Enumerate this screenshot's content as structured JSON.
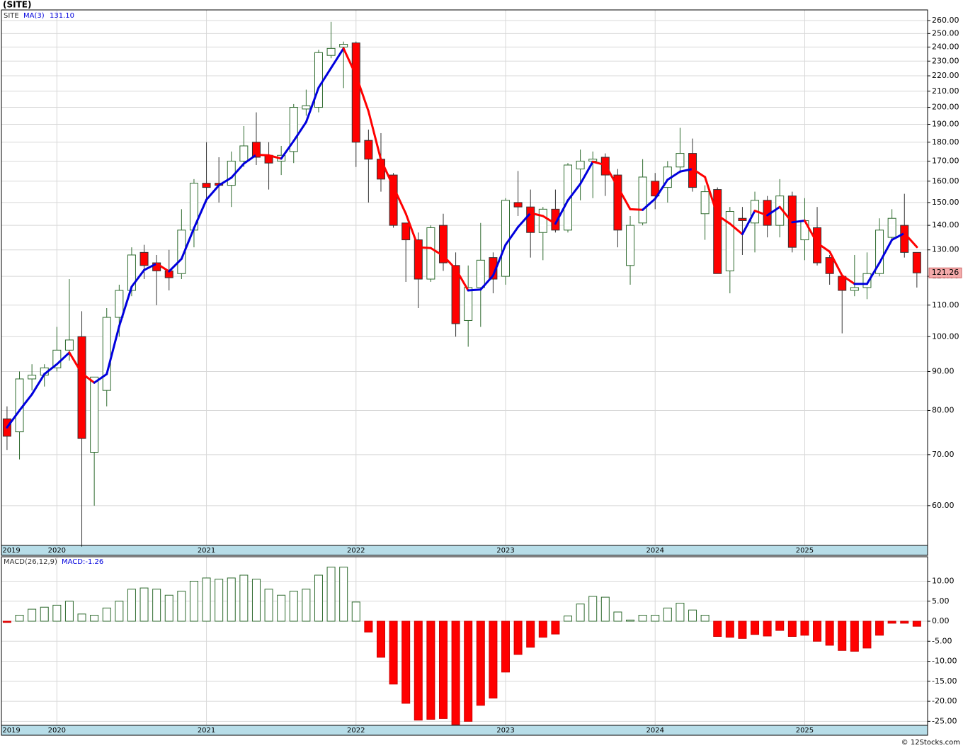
{
  "chart_data": [
    {
      "type": "candlestick",
      "title": "(SITE)",
      "symbol": "SITE",
      "ma_name": "MA(3)",
      "ma_label": "131.10",
      "x": [
        0,
        1,
        2,
        3,
        4,
        5,
        6,
        7,
        8,
        9,
        10,
        11,
        12,
        13,
        14,
        15,
        16,
        17,
        18,
        19,
        20,
        21,
        22,
        23,
        24,
        25,
        26,
        27,
        28,
        29,
        30,
        31,
        32,
        33,
        34,
        35,
        36,
        37,
        38,
        39,
        40,
        41,
        42,
        43,
        44,
        45,
        46,
        47,
        48,
        49,
        50,
        51,
        52,
        53,
        54,
        55,
        56,
        57,
        58,
        59,
        60,
        61,
        62,
        63,
        64,
        65,
        66,
        67,
        68,
        69,
        70,
        71,
        72,
        73
      ],
      "open": [
        78,
        75,
        88,
        89,
        91,
        96,
        100,
        70.5,
        85,
        106,
        115,
        129,
        125,
        122,
        121,
        138,
        159,
        159,
        158,
        170,
        180,
        173,
        170,
        175,
        199,
        200,
        234,
        240,
        243,
        181,
        171,
        163,
        141,
        134,
        119,
        140,
        124,
        105,
        116,
        127,
        120,
        150,
        148,
        137,
        147,
        138,
        166,
        170,
        172,
        163,
        124,
        141,
        160,
        157,
        167,
        174,
        145,
        156,
        122,
        143,
        141,
        151,
        140,
        153,
        134,
        139,
        127,
        120,
        115,
        116,
        121,
        135,
        140,
        129
      ],
      "high": [
        81,
        90,
        92,
        92,
        103,
        119,
        108,
        88,
        109,
        117,
        131,
        132,
        128,
        130,
        147,
        161,
        180,
        172,
        175,
        189,
        197,
        180,
        178,
        202,
        211,
        238,
        259,
        244,
        244,
        187,
        185,
        164,
        141,
        137,
        140,
        145,
        129,
        124,
        141,
        129,
        152,
        165,
        156,
        148,
        156,
        169,
        176,
        175,
        174,
        166,
        144,
        171,
        164,
        170,
        188,
        182,
        158,
        157,
        148,
        148,
        155,
        153,
        161,
        155,
        152,
        148,
        128,
        120,
        128,
        129,
        143,
        147,
        154,
        129
      ],
      "low": [
        71,
        69,
        85,
        86,
        90,
        93,
        53,
        60,
        81,
        100,
        113,
        119,
        110,
        115,
        119,
        131,
        150,
        150,
        148,
        167,
        168,
        156,
        163,
        169,
        195,
        197,
        232,
        212,
        167,
        150,
        155,
        139,
        118,
        109,
        118,
        122,
        100,
        97,
        103,
        114,
        117,
        144,
        127,
        126,
        137,
        137,
        151,
        152,
        153,
        131,
        117,
        140,
        147,
        150,
        164,
        155,
        134,
        121,
        114,
        128,
        129,
        135,
        135,
        129,
        126,
        124,
        117,
        101,
        113,
        112,
        120,
        134,
        127,
        116
      ],
      "close": [
        74,
        88,
        89,
        91,
        96,
        99,
        73.5,
        88.5,
        106,
        115,
        128,
        124,
        122,
        119.5,
        138,
        159,
        157,
        158,
        170,
        178,
        172,
        169,
        173,
        200,
        201,
        236,
        239,
        242,
        180,
        171,
        161,
        140,
        134,
        119,
        139,
        125,
        104,
        116,
        126,
        119,
        151,
        148,
        137,
        147,
        138,
        168,
        170,
        171,
        163,
        138,
        140,
        162,
        153,
        167,
        174,
        157,
        155,
        121,
        146,
        142,
        151,
        140,
        153,
        131,
        142,
        125,
        121,
        115,
        116,
        121,
        138,
        143,
        129,
        121.26
      ],
      "ma": [
        76,
        80,
        84,
        89.3,
        92,
        95.3,
        89.5,
        87,
        89.3,
        103.2,
        116.3,
        122.3,
        124.7,
        121.8,
        126.5,
        138.8,
        151.3,
        158,
        161.7,
        168.7,
        173.3,
        173,
        171.3,
        180.7,
        191.3,
        212.3,
        225.3,
        239,
        220.3,
        197.7,
        170.7,
        157.3,
        145,
        131,
        130.7,
        127.7,
        122.7,
        115,
        115.3,
        120.3,
        132,
        139.3,
        145.3,
        144,
        140.7,
        151,
        158.7,
        169.7,
        168,
        157.3,
        147,
        146.7,
        151.7,
        160.7,
        164.7,
        166,
        162,
        144.3,
        140.7,
        136.3,
        146.3,
        144.3,
        148,
        141.3,
        142,
        132.7,
        129.3,
        120.3,
        117.3,
        117.3,
        125,
        134,
        136.7,
        131.1
      ],
      "up_color": "#2f6b2f",
      "down_color": "#ff0000",
      "ma_up_color": "#0000dd",
      "ma_down_color": "#ff0000",
      "ylim": [
        53.2,
        268.5
      ],
      "log_scale": true,
      "yticks": [
        {
          "value": 60,
          "label": "60.00"
        },
        {
          "value": 70,
          "label": "70.00"
        },
        {
          "value": 80,
          "label": "80.00"
        },
        {
          "value": 90,
          "label": "90.00"
        },
        {
          "value": 100,
          "label": "100.00"
        },
        {
          "value": 110,
          "label": "110.00"
        },
        {
          "value": 120,
          "label": "120.00"
        },
        {
          "value": 130,
          "label": "130.00"
        },
        {
          "value": 140,
          "label": "140.00"
        },
        {
          "value": 150,
          "label": "150.00"
        },
        {
          "value": 160,
          "label": "160.00"
        },
        {
          "value": 170,
          "label": "170.00"
        },
        {
          "value": 180,
          "label": "180.00"
        },
        {
          "value": 190,
          "label": "190.00"
        },
        {
          "value": 200,
          "label": "200.00"
        },
        {
          "value": 210,
          "label": "210.00"
        },
        {
          "value": 220,
          "label": "220.00"
        },
        {
          "value": 230,
          "label": "230.00"
        },
        {
          "value": 240,
          "label": "240.00"
        },
        {
          "value": 250,
          "label": "250.00"
        },
        {
          "value": 260,
          "label": "260.00"
        }
      ],
      "xlim": [
        -0.45,
        73.86
      ],
      "xticks": [
        {
          "value": 0.35,
          "label": "2019"
        },
        {
          "value": 4,
          "label": "2020"
        },
        {
          "value": 16,
          "label": "2021"
        },
        {
          "value": 28,
          "label": "2022"
        },
        {
          "value": 40,
          "label": "2023"
        },
        {
          "value": 52,
          "label": "2024"
        },
        {
          "value": 64,
          "label": "2025"
        }
      ],
      "grid": true
    },
    {
      "type": "bar",
      "title": "MACD(26,12,9)",
      "value_label": "MACD:-1.26",
      "x": [
        0,
        1,
        2,
        3,
        4,
        5,
        6,
        7,
        8,
        9,
        10,
        11,
        12,
        13,
        14,
        15,
        16,
        17,
        18,
        19,
        20,
        21,
        22,
        23,
        24,
        25,
        26,
        27,
        28,
        29,
        30,
        31,
        32,
        33,
        34,
        35,
        36,
        37,
        38,
        39,
        40,
        41,
        42,
        43,
        44,
        45,
        46,
        47,
        48,
        49,
        50,
        51,
        52,
        53,
        54,
        55,
        56,
        57,
        58,
        59,
        60,
        61,
        62,
        63,
        64,
        65,
        66,
        67,
        68,
        69,
        70,
        71,
        72,
        73
      ],
      "values": [
        -0.3,
        1.5,
        3,
        3.5,
        4,
        5,
        1.8,
        1.5,
        3.3,
        5,
        8,
        8.3,
        8,
        6.5,
        7.5,
        10,
        10.8,
        10.5,
        10.8,
        11.5,
        10.5,
        8,
        6.5,
        7.5,
        8,
        11.5,
        13.5,
        13.5,
        4.8,
        -2.7,
        -9,
        -15.7,
        -20.5,
        -24.7,
        -24.5,
        -24.3,
        -25.8,
        -25,
        -21,
        -19.2,
        -12.7,
        -8.3,
        -6.5,
        -4,
        -3.2,
        1.3,
        4.3,
        6.2,
        6,
        2.3,
        0.3,
        1.5,
        1.5,
        3.3,
        4.5,
        2.8,
        1.5,
        -3.8,
        -4,
        -4.3,
        -3.3,
        -3.7,
        -2.3,
        -3.8,
        -3.5,
        -5,
        -6,
        -7.3,
        -7.5,
        -6.7,
        -3.5,
        -0.5,
        -0.5,
        -1.26
      ],
      "up_color": "#2f6b2f",
      "down_color": "#ff0000",
      "ylim": [
        -26,
        16.1
      ],
      "yticks": [
        {
          "value": 10,
          "label": "10.00"
        },
        {
          "value": 5,
          "label": "5.00"
        },
        {
          "value": 0,
          "label": "0.00"
        },
        {
          "value": -5,
          "label": "-5.00"
        },
        {
          "value": -10,
          "label": "-10.00"
        },
        {
          "value": -15,
          "label": "-15.00"
        },
        {
          "value": -20,
          "label": "-20.00"
        },
        {
          "value": -25,
          "label": "-25.00"
        }
      ],
      "xlim": [
        -0.45,
        73.86
      ],
      "xticks": [
        {
          "value": 0.35,
          "label": "2019"
        },
        {
          "value": 4,
          "label": "2020"
        },
        {
          "value": 16,
          "label": "2021"
        },
        {
          "value": 28,
          "label": "2022"
        },
        {
          "value": 40,
          "label": "2023"
        },
        {
          "value": 52,
          "label": "2024"
        },
        {
          "value": 64,
          "label": "2025"
        }
      ],
      "grid": true
    }
  ],
  "footer": "© 12Stocks.com"
}
